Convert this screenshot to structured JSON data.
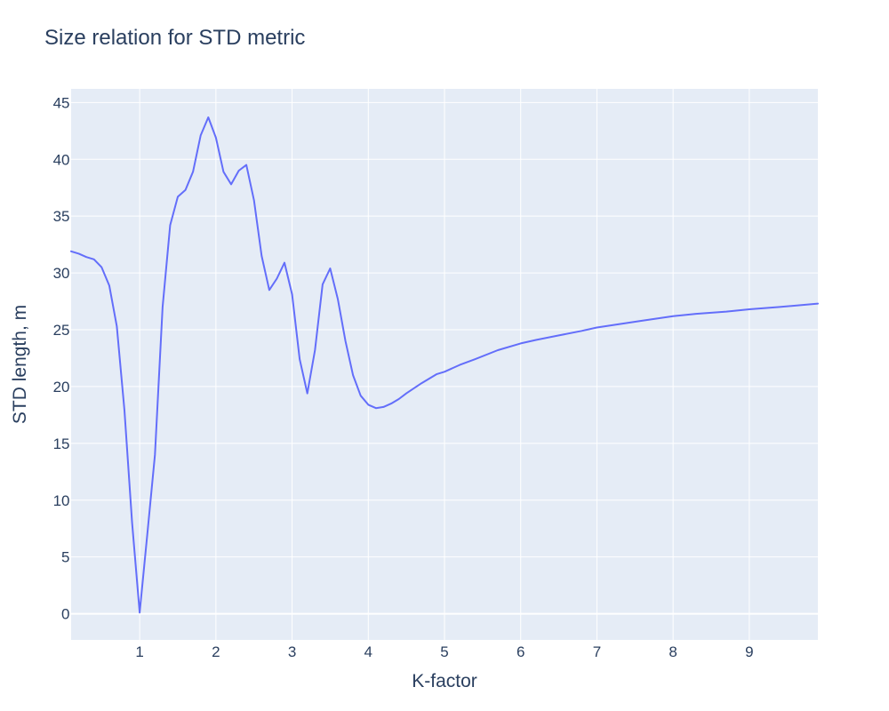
{
  "chart_data": {
    "type": "line",
    "title": "Size relation for STD metric",
    "xlabel": "K-factor",
    "ylabel": "STD length, m",
    "xlim": [
      0.1,
      9.9
    ],
    "ylim": [
      -2.3,
      46.2
    ],
    "xticks": [
      1,
      2,
      3,
      4,
      5,
      6,
      7,
      8,
      9
    ],
    "yticks": [
      0,
      5,
      10,
      15,
      20,
      25,
      30,
      35,
      40,
      45
    ],
    "grid": true,
    "legend": "none",
    "colors": {
      "background": "#e5ecf6",
      "grid": "#ffffff",
      "line": "#636efa",
      "text": "#2a3f5f"
    },
    "series": [
      {
        "x": [
          0.1,
          0.2,
          0.3,
          0.4,
          0.5,
          0.6,
          0.7,
          0.8,
          0.9,
          1.0,
          1.1,
          1.2,
          1.3,
          1.4,
          1.5,
          1.6,
          1.7,
          1.8,
          1.9,
          2.0,
          2.1,
          2.2,
          2.3,
          2.4,
          2.5,
          2.6,
          2.7,
          2.8,
          2.9,
          3.0,
          3.1,
          3.2,
          3.3,
          3.4,
          3.5,
          3.6,
          3.7,
          3.8,
          3.9,
          4.0,
          4.1,
          4.2,
          4.3,
          4.4,
          4.5,
          4.7,
          4.9,
          5.0,
          5.2,
          5.4,
          5.7,
          6.0,
          6.2,
          6.5,
          6.8,
          7.0,
          7.3,
          7.6,
          8.0,
          8.3,
          8.7,
          9.0,
          9.4,
          9.9
        ],
        "y": [
          31.9,
          31.7,
          31.4,
          31.2,
          30.5,
          28.9,
          25.3,
          17.9,
          8.0,
          0.1,
          7.0,
          14.0,
          27.0,
          34.2,
          36.7,
          37.3,
          38.9,
          42.1,
          43.7,
          41.9,
          38.9,
          37.8,
          39.0,
          39.5,
          36.4,
          31.5,
          28.5,
          29.5,
          30.9,
          28.1,
          22.4,
          19.4,
          23.2,
          29.0,
          30.4,
          27.7,
          24.0,
          21.0,
          19.2,
          18.4,
          18.1,
          18.2,
          18.5,
          18.9,
          19.4,
          20.3,
          21.1,
          21.3,
          21.9,
          22.4,
          23.2,
          23.8,
          24.1,
          24.5,
          24.9,
          25.2,
          25.5,
          25.8,
          26.2,
          26.4,
          26.6,
          26.8,
          27.0,
          27.3
        ]
      }
    ]
  }
}
